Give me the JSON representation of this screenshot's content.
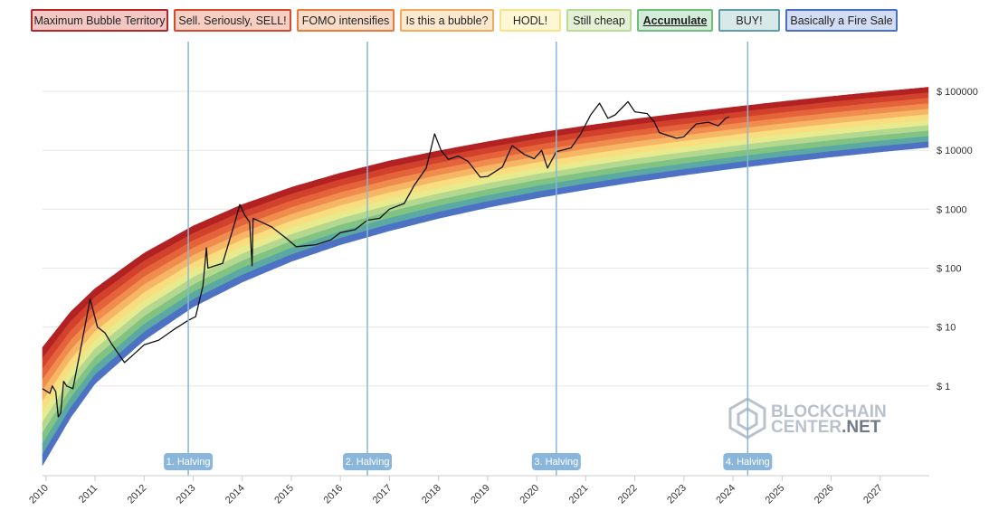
{
  "legend": {
    "items": [
      {
        "label": "Maximum Bubble Territory",
        "fill": "#f2c7c4",
        "border": "#b3282a"
      },
      {
        "label": "Sell. Seriously, SELL!",
        "fill": "#f7cfc2",
        "border": "#d54a2f"
      },
      {
        "label": "FOMO intensifies",
        "fill": "#f8dcc8",
        "border": "#e97b3d"
      },
      {
        "label": "Is this a bubble?",
        "fill": "#fbe8cf",
        "border": "#f2ab5b"
      },
      {
        "label": "HODL!",
        "fill": "#fdf7d6",
        "border": "#f7e48a"
      },
      {
        "label": "Still cheap",
        "fill": "#e4f1d7",
        "border": "#b7dc92"
      },
      {
        "label": "Accumulate",
        "fill": "#d3ecd9",
        "border": "#6fbf7a",
        "active": true
      },
      {
        "label": "BUY!",
        "fill": "#d9e9ea",
        "border": "#5f9ea8"
      },
      {
        "label": "Basically a Fire Sale",
        "fill": "#d2dcf3",
        "border": "#4a6fc6"
      }
    ]
  },
  "watermark": {
    "line1": "BLOCKCHAIN",
    "line2": "CENTER",
    "line3": ".NET"
  },
  "chart_data": {
    "type": "area",
    "y_scale": "log",
    "ylim": [
      0.03,
      700000
    ],
    "xlim": [
      2009.93,
      2028.0
    ],
    "y_ticks": [
      {
        "value": 100000,
        "label": "$ 100000"
      },
      {
        "value": 10000,
        "label": "$ 10000"
      },
      {
        "value": 1000,
        "label": "$ 1000"
      },
      {
        "value": 100,
        "label": "$ 100"
      },
      {
        "value": 10,
        "label": "$ 10"
      },
      {
        "value": 1,
        "label": "$ 1"
      }
    ],
    "x_ticks": [
      "2010",
      "2011",
      "2012",
      "2013",
      "2014",
      "2015",
      "2016",
      "2017",
      "2018",
      "2019",
      "2020",
      "2021",
      "2022",
      "2023",
      "2024",
      "2025",
      "2026",
      "2027"
    ],
    "bands": {
      "colors": [
        "#b22222",
        "#d2412c",
        "#e5633a",
        "#f08c4d",
        "#f6b665",
        "#f9dd7f",
        "#e7ea8d",
        "#b5d890",
        "#81c383",
        "#5ba9a2",
        "#4d72c4"
      ],
      "lower_edge": [
        [
          2009.93,
          0.045
        ],
        [
          2010.5,
          0.29
        ],
        [
          2011,
          1.1
        ],
        [
          2012,
          6
        ],
        [
          2013,
          22
        ],
        [
          2014,
          58
        ],
        [
          2015,
          130
        ],
        [
          2016,
          250
        ],
        [
          2017,
          430
        ],
        [
          2018,
          700
        ],
        [
          2019,
          1070
        ],
        [
          2020,
          1550
        ],
        [
          2021,
          2150
        ],
        [
          2022,
          2900
        ],
        [
          2023,
          3800
        ],
        [
          2024,
          4900
        ],
        [
          2025,
          6200
        ],
        [
          2026,
          7700
        ],
        [
          2027,
          9400
        ],
        [
          2028,
          11300
        ]
      ],
      "upper_edge": [
        [
          2009.93,
          4.5
        ],
        [
          2010.5,
          18
        ],
        [
          2011,
          45
        ],
        [
          2012,
          180
        ],
        [
          2013,
          520
        ],
        [
          2014,
          1200
        ],
        [
          2015,
          2350
        ],
        [
          2016,
          4100
        ],
        [
          2017,
          6600
        ],
        [
          2018,
          9800
        ],
        [
          2019,
          14000
        ],
        [
          2020,
          19500
        ],
        [
          2021,
          26000
        ],
        [
          2022,
          34000
        ],
        [
          2023,
          43000
        ],
        [
          2024,
          54000
        ],
        [
          2025,
          67000
        ],
        [
          2026,
          82000
        ],
        [
          2027,
          99000
        ],
        [
          2028,
          118000
        ]
      ]
    },
    "series": [
      {
        "points": [
          [
            2009.93,
            0.9
          ],
          [
            2010.08,
            0.75
          ],
          [
            2010.13,
            1.0
          ],
          [
            2010.2,
            0.8
          ],
          [
            2010.25,
            0.3
          ],
          [
            2010.3,
            0.35
          ],
          [
            2010.36,
            1.2
          ],
          [
            2010.42,
            1.0
          ],
          [
            2010.55,
            0.9
          ],
          [
            2010.7,
            4
          ],
          [
            2010.9,
            30
          ],
          [
            2011.05,
            10
          ],
          [
            2011.2,
            8
          ],
          [
            2011.35,
            5
          ],
          [
            2011.6,
            2.5
          ],
          [
            2011.8,
            3.5
          ],
          [
            2012.0,
            5
          ],
          [
            2012.3,
            6
          ],
          [
            2012.6,
            9
          ],
          [
            2012.9,
            13
          ],
          [
            2013.05,
            15
          ],
          [
            2013.2,
            50
          ],
          [
            2013.27,
            220
          ],
          [
            2013.3,
            100
          ],
          [
            2013.45,
            110
          ],
          [
            2013.6,
            120
          ],
          [
            2013.85,
            600
          ],
          [
            2013.95,
            1200
          ],
          [
            2014.05,
            800
          ],
          [
            2014.15,
            600
          ],
          [
            2014.2,
            110
          ],
          [
            2014.22,
            700
          ],
          [
            2014.4,
            600
          ],
          [
            2014.6,
            500
          ],
          [
            2014.9,
            320
          ],
          [
            2015.1,
            230
          ],
          [
            2015.3,
            240
          ],
          [
            2015.5,
            250
          ],
          [
            2015.8,
            300
          ],
          [
            2016.0,
            400
          ],
          [
            2016.3,
            450
          ],
          [
            2016.55,
            650
          ],
          [
            2016.8,
            700
          ],
          [
            2017.0,
            1000
          ],
          [
            2017.3,
            1250
          ],
          [
            2017.5,
            2500
          ],
          [
            2017.75,
            5000
          ],
          [
            2017.92,
            19000
          ],
          [
            2018.05,
            10000
          ],
          [
            2018.2,
            7000
          ],
          [
            2018.4,
            8000
          ],
          [
            2018.6,
            6500
          ],
          [
            2018.85,
            3500
          ],
          [
            2019.0,
            3600
          ],
          [
            2019.3,
            5200
          ],
          [
            2019.5,
            12000
          ],
          [
            2019.75,
            8500
          ],
          [
            2019.95,
            7200
          ],
          [
            2020.1,
            10000
          ],
          [
            2020.22,
            5000
          ],
          [
            2020.4,
            9500
          ],
          [
            2020.7,
            11000
          ],
          [
            2020.9,
            19000
          ],
          [
            2021.1,
            40000
          ],
          [
            2021.28,
            63000
          ],
          [
            2021.45,
            35000
          ],
          [
            2021.6,
            40000
          ],
          [
            2021.86,
            67000
          ],
          [
            2022.0,
            45000
          ],
          [
            2022.25,
            42000
          ],
          [
            2022.4,
            30000
          ],
          [
            2022.5,
            20000
          ],
          [
            2022.85,
            16000
          ],
          [
            2023.0,
            17000
          ],
          [
            2023.25,
            28000
          ],
          [
            2023.5,
            30000
          ],
          [
            2023.7,
            26000
          ],
          [
            2023.85,
            35000
          ],
          [
            2023.92,
            37000
          ]
        ]
      }
    ],
    "halvings": [
      {
        "x": 2012.9,
        "label": "1. Halving"
      },
      {
        "x": 2016.55,
        "label": "2. Halving"
      },
      {
        "x": 2020.4,
        "label": "3. Halving"
      },
      {
        "x": 2024.3,
        "label": "4. Halving"
      }
    ],
    "grid": true
  }
}
